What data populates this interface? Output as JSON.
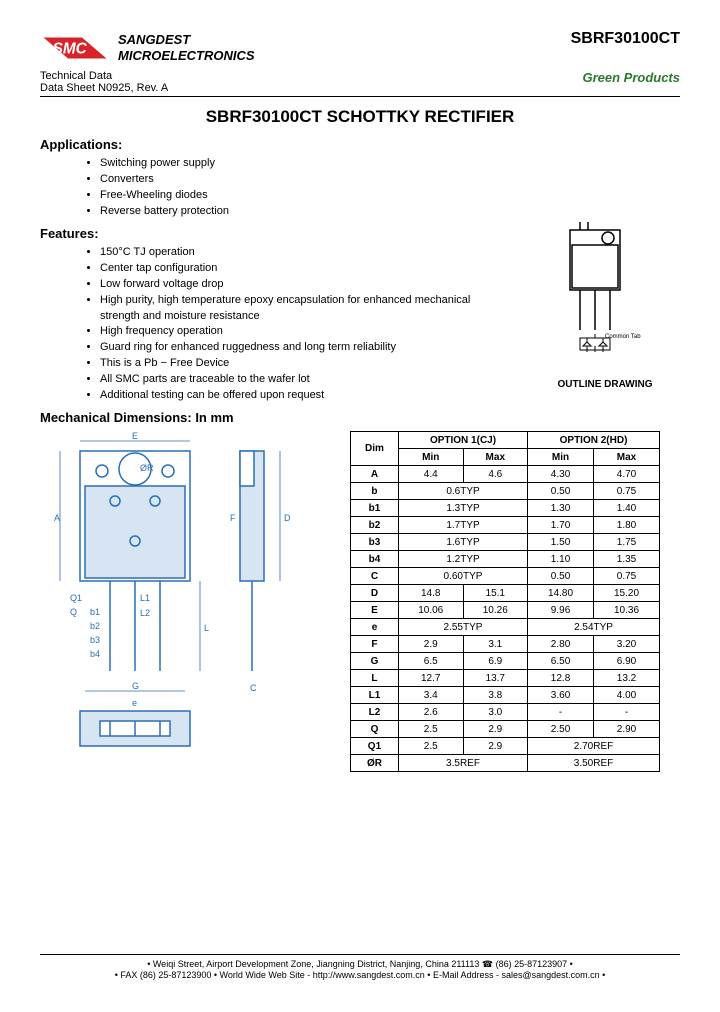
{
  "header": {
    "company_line1": "SANGDEST",
    "company_line2": "MICROELECTRONICS",
    "part_number": "SBRF30100CT",
    "tech_data": "Technical Data",
    "datasheet": "Data Sheet N0925, Rev. A",
    "green": "Green Products",
    "logo_red": "#d9232a",
    "logo_text": "SMC"
  },
  "title": "SBRF30100CT SCHOTTKY RECTIFIER",
  "applications": {
    "heading": "Applications:",
    "items": [
      "Switching power supply",
      "Converters",
      "Free-Wheeling diodes",
      "Reverse battery protection"
    ]
  },
  "features": {
    "heading": "Features:",
    "items": [
      "150°C TJ operation",
      "Center tap configuration",
      "Low forward voltage drop",
      "High purity, high temperature epoxy encapsulation for enhanced mechanical strength and moisture resistance",
      "High frequency operation",
      "Guard ring for enhanced ruggedness and long term reliability",
      "This is a Pb − Free Device",
      "All SMC parts are traceable to the wafer lot",
      "Additional testing can be offered upon request"
    ],
    "outline_label": "OUTLINE DRAWING",
    "pin_label": "Common Tab"
  },
  "mechanical": {
    "heading": "Mechanical Dimensions: In mm",
    "drawing_labels": [
      "A",
      "L",
      "b1",
      "L1",
      "b2",
      "b3",
      "b4",
      "L2",
      "Q1",
      "Q",
      "G",
      "D",
      "E",
      "C",
      "e",
      "F",
      "ØR"
    ],
    "drawing_color": "#2a6fb5"
  },
  "table": {
    "opt1": "OPTION 1(CJ)",
    "opt2": "OPTION 2(HD)",
    "dim": "Dim",
    "min": "Min",
    "max": "Max",
    "rows": [
      {
        "d": "A",
        "v": [
          "4.4",
          "4.6",
          "4.30",
          "4.70"
        ]
      },
      {
        "d": "b",
        "v": [
          "0.6TYP",
          "",
          "0.50",
          "0.75"
        ],
        "span1": true
      },
      {
        "d": "b1",
        "v": [
          "1.3TYP",
          "",
          "1.30",
          "1.40"
        ],
        "span1": true
      },
      {
        "d": "b2",
        "v": [
          "1.7TYP",
          "",
          "1.70",
          "1.80"
        ],
        "span1": true
      },
      {
        "d": "b3",
        "v": [
          "1.6TYP",
          "",
          "1.50",
          "1.75"
        ],
        "span1": true
      },
      {
        "d": "b4",
        "v": [
          "1.2TYP",
          "",
          "1.10",
          "1.35"
        ],
        "span1": true
      },
      {
        "d": "C",
        "v": [
          "0.60TYP",
          "",
          "0.50",
          "0.75"
        ],
        "span1": true
      },
      {
        "d": "D",
        "v": [
          "14.8",
          "15.1",
          "14.80",
          "15.20"
        ]
      },
      {
        "d": "E",
        "v": [
          "10.06",
          "10.26",
          "9.96",
          "10.36"
        ]
      },
      {
        "d": "e",
        "v": [
          "2.55TYP",
          "",
          "2.54TYP",
          ""
        ],
        "span1": true,
        "span2": true
      },
      {
        "d": "F",
        "v": [
          "2.9",
          "3.1",
          "2.80",
          "3.20"
        ]
      },
      {
        "d": "G",
        "v": [
          "6.5",
          "6.9",
          "6.50",
          "6.90"
        ]
      },
      {
        "d": "L",
        "v": [
          "12.7",
          "13.7",
          "12.8",
          "13.2"
        ]
      },
      {
        "d": "L1",
        "v": [
          "3.4",
          "3.8",
          "3.60",
          "4.00"
        ]
      },
      {
        "d": "L2",
        "v": [
          "2.6",
          "3.0",
          "-",
          "-"
        ]
      },
      {
        "d": "Q",
        "v": [
          "2.5",
          "2.9",
          "2.50",
          "2.90"
        ]
      },
      {
        "d": "Q1",
        "v": [
          "2.5",
          "2.9",
          "2.70REF",
          ""
        ],
        "span2": true
      },
      {
        "d": "ØR",
        "v": [
          "3.5REF",
          "",
          "3.50REF",
          ""
        ],
        "span1": true,
        "span2": true
      }
    ]
  },
  "footer": {
    "line1": "• Weiqi Street, Airport Development Zone, Jiangning District, Nanjing, China 211113 ☎ (86) 25-87123907 •",
    "line2": "• FAX (86) 25-87123900 • World Wide Web Site - http://www.sangdest.com.cn • E-Mail Address - sales@sangdest.com.cn •"
  }
}
